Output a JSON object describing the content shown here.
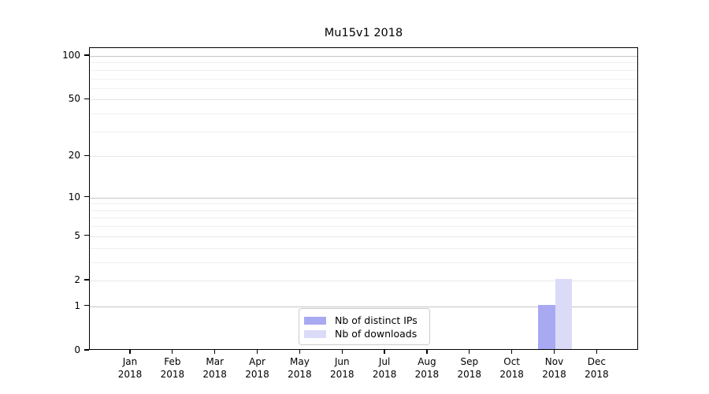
{
  "chart_data": {
    "type": "bar",
    "title": "Mu15v1 2018",
    "categories": [
      "Jan 2018",
      "Feb 2018",
      "Mar 2018",
      "Apr 2018",
      "May 2018",
      "Jun 2018",
      "Jul 2018",
      "Aug 2018",
      "Sep 2018",
      "Oct 2018",
      "Nov 2018",
      "Dec 2018"
    ],
    "series": [
      {
        "name": "Nb of distinct IPs",
        "color": "#a9a9f2",
        "values": [
          0,
          0,
          0,
          0,
          0,
          0,
          0,
          0,
          0,
          0,
          1,
          0
        ]
      },
      {
        "name": "Nb of downloads",
        "color": "#dbdbf8",
        "values": [
          0,
          0,
          0,
          0,
          0,
          0,
          0,
          0,
          0,
          0,
          2,
          0
        ]
      }
    ],
    "xlabel": "",
    "ylabel": "",
    "y_scale": "log1p",
    "ylim": [
      0,
      113
    ],
    "y_ticks": [
      0,
      1,
      2,
      5,
      10,
      20,
      50,
      100
    ],
    "y_gridlines_emphasized": [
      1,
      10,
      100
    ],
    "y_gridlines_light": [
      2,
      5,
      20,
      50
    ],
    "y_gridlines_minor": [
      3,
      4,
      6,
      7,
      8,
      9,
      30,
      40,
      60,
      70,
      80,
      90
    ],
    "grid": true,
    "legend_position": "lower center"
  },
  "colors": {
    "bar_distinct_ips": "#a9a9f2",
    "bar_downloads": "#dbdbf8",
    "grid_emphasized": "#c5c5c5",
    "grid_light": "#e7e7e7",
    "grid_minor": "#f0f0f0",
    "axis": "#000000",
    "legend_border": "#cbcbcb",
    "background": "#ffffff"
  }
}
